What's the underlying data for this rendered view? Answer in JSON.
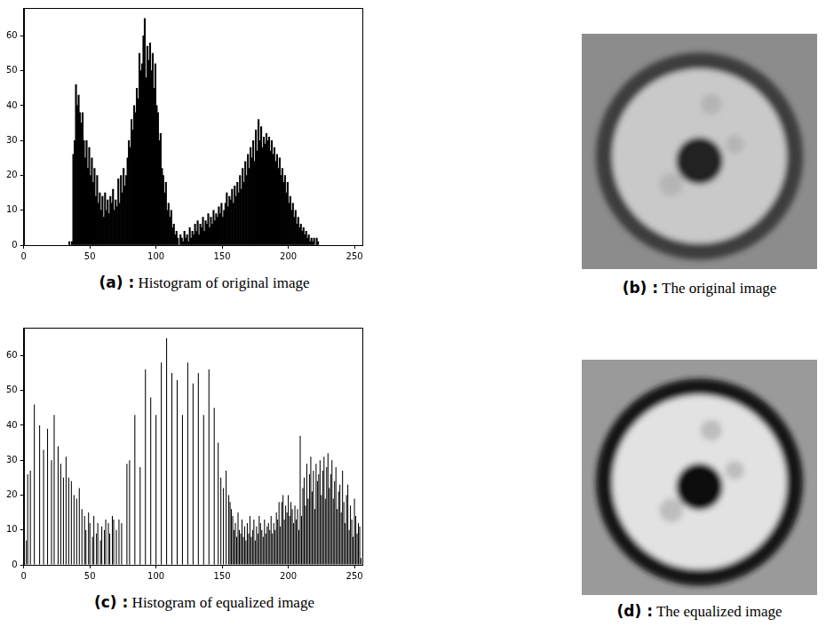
{
  "chart_data": [
    {
      "type": "histogram",
      "label": "(a) :",
      "caption": "Histogram of original image",
      "color": "#000000",
      "grid": false,
      "bins": [
        34,
        35,
        36,
        37,
        38,
        39,
        40,
        41,
        42,
        43,
        44,
        45,
        46,
        47,
        48,
        49,
        50,
        51,
        52,
        53,
        54,
        55,
        56,
        57,
        58,
        59,
        60,
        61,
        62,
        63,
        64,
        65,
        66,
        67,
        68,
        69,
        70,
        71,
        72,
        73,
        74,
        75,
        76,
        77,
        78,
        79,
        80,
        81,
        82,
        83,
        84,
        85,
        86,
        87,
        88,
        89,
        90,
        91,
        92,
        93,
        94,
        95,
        96,
        97,
        98,
        99,
        100,
        101,
        102,
        103,
        104,
        105,
        106,
        107,
        108,
        109,
        110,
        111,
        112,
        113,
        114,
        115,
        116,
        117,
        118,
        119,
        120,
        121,
        122,
        123,
        124,
        125,
        126,
        127,
        128,
        129,
        130,
        131,
        132,
        133,
        134,
        135,
        136,
        137,
        138,
        139,
        140,
        141,
        142,
        143,
        144,
        145,
        146,
        147,
        148,
        149,
        150,
        151,
        152,
        153,
        154,
        155,
        156,
        157,
        158,
        159,
        160,
        161,
        162,
        163,
        164,
        165,
        166,
        167,
        168,
        169,
        170,
        171,
        172,
        173,
        174,
        175,
        176,
        177,
        178,
        179,
        180,
        181,
        182,
        183,
        184,
        185,
        186,
        187,
        188,
        189,
        190,
        191,
        192,
        193,
        194,
        195,
        196,
        197,
        198,
        199,
        200,
        201,
        202,
        203,
        204,
        205,
        206,
        207,
        208,
        209,
        210,
        211,
        212,
        213,
        214,
        215,
        216,
        217,
        218,
        219,
        220,
        221,
        222,
        223
      ],
      "values": [
        1,
        0,
        1,
        26,
        30,
        46,
        40,
        43,
        38,
        35,
        38,
        30,
        25,
        30,
        22,
        28,
        20,
        25,
        18,
        22,
        14,
        20,
        12,
        15,
        10,
        14,
        8,
        15,
        10,
        13,
        9,
        14,
        12,
        16,
        10,
        13,
        11,
        19,
        12,
        20,
        15,
        22,
        17,
        20,
        25,
        30,
        28,
        36,
        33,
        40,
        38,
        45,
        42,
        55,
        50,
        52,
        60,
        65,
        48,
        57,
        53,
        58,
        50,
        55,
        45,
        52,
        40,
        38,
        30,
        32,
        22,
        20,
        15,
        18,
        10,
        12,
        8,
        10,
        5,
        6,
        3,
        4,
        2,
        0,
        3,
        2,
        1,
        4,
        2,
        3,
        1,
        5,
        2,
        4,
        3,
        6,
        4,
        7,
        3,
        6,
        5,
        8,
        4,
        7,
        6,
        9,
        5,
        8,
        6,
        10,
        7,
        9,
        8,
        11,
        9,
        12,
        8,
        10,
        12,
        15,
        11,
        14,
        13,
        16,
        12,
        17,
        14,
        18,
        15,
        20,
        16,
        22,
        18,
        24,
        20,
        26,
        22,
        28,
        25,
        30,
        24,
        33,
        27,
        36,
        30,
        34,
        28,
        31,
        29,
        32,
        30,
        31,
        27,
        30,
        26,
        28,
        24,
        26,
        22,
        25,
        20,
        22,
        18,
        20,
        15,
        18,
        12,
        14,
        10,
        12,
        8,
        10,
        6,
        8,
        5,
        6,
        4,
        5,
        3,
        4,
        2,
        3,
        1,
        2,
        1,
        2,
        0,
        2,
        1
      ],
      "xlim": [
        0,
        256
      ],
      "xticks": [
        0,
        50,
        100,
        150,
        200,
        250
      ],
      "ylim": [
        0,
        68
      ],
      "yticks": [
        0,
        10,
        20,
        30,
        40,
        50,
        60
      ]
    },
    {
      "type": "bar",
      "label": "(c) :",
      "caption": "Histogram of equalized image",
      "color": "#000000",
      "grid": false,
      "x": [
        0,
        2,
        3,
        5,
        8,
        12,
        15,
        18,
        21,
        23,
        26,
        28,
        30,
        32,
        34,
        36,
        38,
        40,
        42,
        44,
        46,
        47,
        49,
        50,
        52,
        53,
        55,
        56,
        58,
        59,
        61,
        62,
        64,
        65,
        67,
        68,
        70,
        72,
        74,
        78,
        80,
        84,
        88,
        92,
        96,
        100,
        104,
        108,
        112,
        116,
        120,
        124,
        128,
        132,
        136,
        140,
        144,
        147,
        149,
        151,
        153,
        155,
        156,
        157,
        158,
        159,
        160,
        161,
        162,
        163,
        164,
        165,
        166,
        167,
        168,
        169,
        170,
        171,
        172,
        173,
        174,
        175,
        176,
        177,
        178,
        179,
        180,
        181,
        182,
        183,
        184,
        185,
        186,
        187,
        188,
        189,
        190,
        191,
        192,
        193,
        194,
        195,
        196,
        197,
        198,
        199,
        200,
        201,
        202,
        203,
        204,
        205,
        206,
        207,
        208,
        209,
        210,
        211,
        212,
        213,
        214,
        215,
        216,
        217,
        218,
        219,
        220,
        221,
        222,
        223,
        224,
        225,
        226,
        227,
        228,
        229,
        230,
        231,
        232,
        233,
        234,
        235,
        236,
        237,
        238,
        239,
        240,
        241,
        242,
        243,
        244,
        245,
        246,
        247,
        248,
        249,
        250,
        251,
        252,
        253,
        254,
        255
      ],
      "values": [
        2,
        7,
        26,
        27,
        46,
        40,
        33,
        39,
        30,
        43,
        34,
        29,
        25,
        31,
        25,
        24,
        20,
        19,
        22,
        16,
        14,
        10,
        15,
        12,
        8,
        14,
        9,
        12,
        7,
        11,
        10,
        13,
        12,
        9,
        14,
        13,
        10,
        13,
        12,
        29,
        30,
        43,
        28,
        56,
        48,
        43,
        58,
        65,
        55,
        53,
        43,
        58,
        52,
        55,
        43,
        56,
        45,
        35,
        25,
        22,
        27,
        20,
        18,
        16,
        14,
        10,
        12,
        8,
        15,
        10,
        9,
        13,
        8,
        11,
        7,
        12,
        9,
        14,
        8,
        10,
        13,
        7,
        11,
        9,
        14,
        12,
        10,
        8,
        13,
        9,
        11,
        12,
        10,
        14,
        9,
        12,
        10,
        15,
        13,
        18,
        11,
        18,
        20,
        13,
        17,
        15,
        20,
        14,
        18,
        16,
        12,
        17,
        13,
        16,
        10,
        37,
        14,
        22,
        25,
        17,
        29,
        19,
        26,
        31,
        21,
        27,
        16,
        29,
        24,
        26,
        30,
        20,
        27,
        31,
        19,
        28,
        32,
        22,
        26,
        30,
        19,
        24,
        28,
        16,
        21,
        23,
        15,
        27,
        18,
        12,
        20,
        23,
        10,
        17,
        13,
        8,
        19,
        14,
        9,
        12,
        11,
        2
      ],
      "xlim": [
        0,
        256
      ],
      "xticks": [
        0,
        50,
        100,
        150,
        200,
        250
      ],
      "ylim": [
        0,
        68
      ],
      "yticks": [
        0,
        10,
        20,
        30,
        40,
        50,
        60
      ]
    }
  ],
  "images": [
    {
      "label": "(b) :",
      "caption": "The original image"
    },
    {
      "label": "(d) :",
      "caption": "The equalized image"
    }
  ]
}
